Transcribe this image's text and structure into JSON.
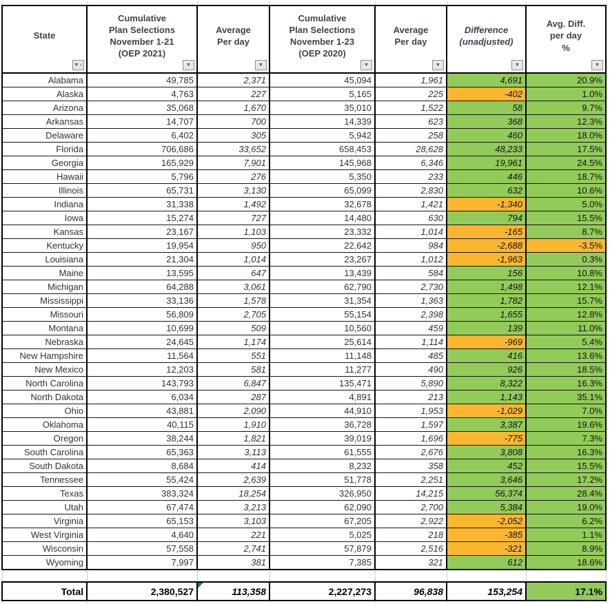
{
  "colors": {
    "positive_fill": "#93CB5A",
    "negative_fill": "#FBB62F",
    "error_indicator": "#2F7A33",
    "border": "#000000",
    "header_text": "#3E434A"
  },
  "icons": {
    "filter_glyph": "▼",
    "sort_asc_glyph": "↑"
  },
  "header": {
    "columns": [
      {
        "id": "state",
        "lines": [
          "State"
        ],
        "sort": true
      },
      {
        "id": "cum2021",
        "lines": [
          "Cumulative",
          "Plan Selections",
          "November 1-21",
          "(OEP 2021)"
        ]
      },
      {
        "id": "avg2021",
        "lines": [
          "Average",
          "Per day"
        ]
      },
      {
        "id": "cum2020",
        "lines": [
          "Cumulative",
          "Plan Selections",
          "November 1-23",
          "(OEP 2020)"
        ]
      },
      {
        "id": "avg2020",
        "lines": [
          "Average",
          "Per day"
        ]
      },
      {
        "id": "diff",
        "lines": [
          "Difference",
          "(unadjusted)"
        ],
        "italic": true
      },
      {
        "id": "pct",
        "lines": [
          "Avg. Diff.",
          "per day",
          "%"
        ]
      }
    ]
  },
  "rows": [
    [
      "Alabama",
      "49,785",
      "2,371",
      "45,094",
      "1,961",
      "4,691",
      "20.9%"
    ],
    [
      "Alaska",
      "4,763",
      "227",
      "5,165",
      "225",
      "-402",
      "1.0%"
    ],
    [
      "Arizona",
      "35,068",
      "1,670",
      "35,010",
      "1,522",
      "58",
      "9.7%"
    ],
    [
      "Arkansas",
      "14,707",
      "700",
      "14,339",
      "623",
      "368",
      "12.3%"
    ],
    [
      "Delaware",
      "6,402",
      "305",
      "5,942",
      "258",
      "460",
      "18.0%"
    ],
    [
      "Florida",
      "706,686",
      "33,652",
      "658,453",
      "28,628",
      "48,233",
      "17.5%"
    ],
    [
      "Georgia",
      "165,929",
      "7,901",
      "145,968",
      "6,346",
      "19,961",
      "24.5%"
    ],
    [
      "Hawaii",
      "5,796",
      "276",
      "5,350",
      "233",
      "446",
      "18.7%"
    ],
    [
      "Illinois",
      "65,731",
      "3,130",
      "65,099",
      "2,830",
      "632",
      "10.6%"
    ],
    [
      "Indiana",
      "31,338",
      "1,492",
      "32,678",
      "1,421",
      "-1,340",
      "5.0%"
    ],
    [
      "Iowa",
      "15,274",
      "727",
      "14,480",
      "630",
      "794",
      "15.5%"
    ],
    [
      "Kansas",
      "23,167",
      "1,103",
      "23,332",
      "1,014",
      "-165",
      "8.7%"
    ],
    [
      "Kentucky",
      "19,954",
      "950",
      "22,642",
      "984",
      "-2,688",
      "-3.5%"
    ],
    [
      "Louisiana",
      "21,304",
      "1,014",
      "23,267",
      "1,012",
      "-1,963",
      "0.3%"
    ],
    [
      "Maine",
      "13,595",
      "647",
      "13,439",
      "584",
      "156",
      "10.8%"
    ],
    [
      "Michigan",
      "64,288",
      "3,061",
      "62,790",
      "2,730",
      "1,498",
      "12.1%"
    ],
    [
      "Mississippi",
      "33,136",
      "1,578",
      "31,354",
      "1,363",
      "1,782",
      "15.7%"
    ],
    [
      "Missouri",
      "56,809",
      "2,705",
      "55,154",
      "2,398",
      "1,655",
      "12.8%"
    ],
    [
      "Montana",
      "10,699",
      "509",
      "10,560",
      "459",
      "139",
      "11.0%"
    ],
    [
      "Nebraska",
      "24,645",
      "1,174",
      "25,614",
      "1,114",
      "-969",
      "5.4%"
    ],
    [
      "New Hampshire",
      "11,564",
      "551",
      "11,148",
      "485",
      "416",
      "13.6%"
    ],
    [
      "New Mexico",
      "12,203",
      "581",
      "11,277",
      "490",
      "926",
      "18.5%"
    ],
    [
      "North Carolina",
      "143,793",
      "6,847",
      "135,471",
      "5,890",
      "8,322",
      "16.3%"
    ],
    [
      "North Dakota",
      "6,034",
      "287",
      "4,891",
      "213",
      "1,143",
      "35.1%"
    ],
    [
      "Ohio",
      "43,881",
      "2,090",
      "44,910",
      "1,953",
      "-1,029",
      "7.0%"
    ],
    [
      "Oklahoma",
      "40,115",
      "1,910",
      "36,728",
      "1,597",
      "3,387",
      "19.6%"
    ],
    [
      "Oregon",
      "38,244",
      "1,821",
      "39,019",
      "1,696",
      "-775",
      "7.3%"
    ],
    [
      "South Carolina",
      "65,363",
      "3,113",
      "61,555",
      "2,676",
      "3,808",
      "16.3%"
    ],
    [
      "South Dakota",
      "8,684",
      "414",
      "8,232",
      "358",
      "452",
      "15.5%"
    ],
    [
      "Tennessee",
      "55,424",
      "2,639",
      "51,778",
      "2,251",
      "3,646",
      "17.2%"
    ],
    [
      "Texas",
      "383,324",
      "18,254",
      "326,950",
      "14,215",
      "56,374",
      "28.4%"
    ],
    [
      "Utah",
      "67,474",
      "3,213",
      "62,090",
      "2,700",
      "5,384",
      "19.0%"
    ],
    [
      "Virginia",
      "65,153",
      "3,103",
      "67,205",
      "2,922",
      "-2,052",
      "6.2%"
    ],
    [
      "West Virginia",
      "4,640",
      "221",
      "5,025",
      "218",
      "-385",
      "1.1%"
    ],
    [
      "Wisconsin",
      "57,558",
      "2,741",
      "57,879",
      "2,516",
      "-321",
      "8.9%"
    ],
    [
      "Wyoming",
      "7,997",
      "381",
      "7,385",
      "321",
      "612",
      "18.6%"
    ]
  ],
  "total": {
    "label": "Total",
    "cum2021": "2,380,527",
    "avg2021": "113,358",
    "cum2020": "2,227,273",
    "avg2020": "96,838",
    "diff": "153,254",
    "pct": "17.1%"
  }
}
